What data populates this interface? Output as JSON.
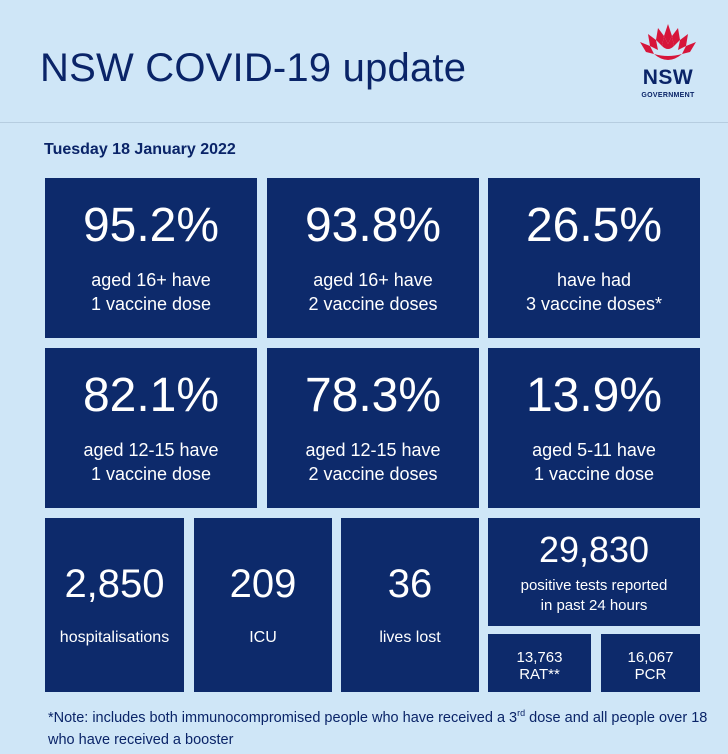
{
  "header": {
    "title": "NSW COVID-19 update",
    "logo_text": "NSW",
    "logo_sub": "GOVERNMENT"
  },
  "date": "Tuesday 18 January 2022",
  "vaccination_tiles": [
    {
      "value": "95.2%",
      "line1": "aged 16+ have",
      "line2": "1 vaccine dose"
    },
    {
      "value": "93.8%",
      "line1": "aged 16+ have",
      "line2": "2 vaccine doses"
    },
    {
      "value": "26.5%",
      "line1": "have had",
      "line2": "3 vaccine doses*"
    },
    {
      "value": "82.1%",
      "line1": "aged 12-15 have",
      "line2": "1 vaccine dose"
    },
    {
      "value": "78.3%",
      "line1": "aged 12-15 have",
      "line2": "2 vaccine doses"
    },
    {
      "value": "13.9%",
      "line1": "aged 5-11 have",
      "line2": "1 vaccine dose"
    }
  ],
  "stats": {
    "hospitalisations": {
      "value": "2,850",
      "label": "hospitalisations"
    },
    "icu": {
      "value": "209",
      "label": "ICU"
    },
    "lives_lost": {
      "value": "36",
      "label": "lives lost"
    },
    "positive_tests": {
      "value": "29,830",
      "line1": "positive tests reported",
      "line2": "in past 24 hours"
    },
    "rat": {
      "value": "13,763",
      "label": "RAT**"
    },
    "pcr": {
      "value": "16,067",
      "label": "PCR"
    }
  },
  "note": {
    "part1": "*Note: includes both immunocompromised people who have received a 3",
    "sup": "rd",
    "part2": " dose and all people over 18 who have received a booster"
  },
  "colors": {
    "background": "#cfe6f7",
    "tile": "#0d2a6b",
    "text_dark": "#0a2468",
    "logo_red": "#d7153a"
  }
}
